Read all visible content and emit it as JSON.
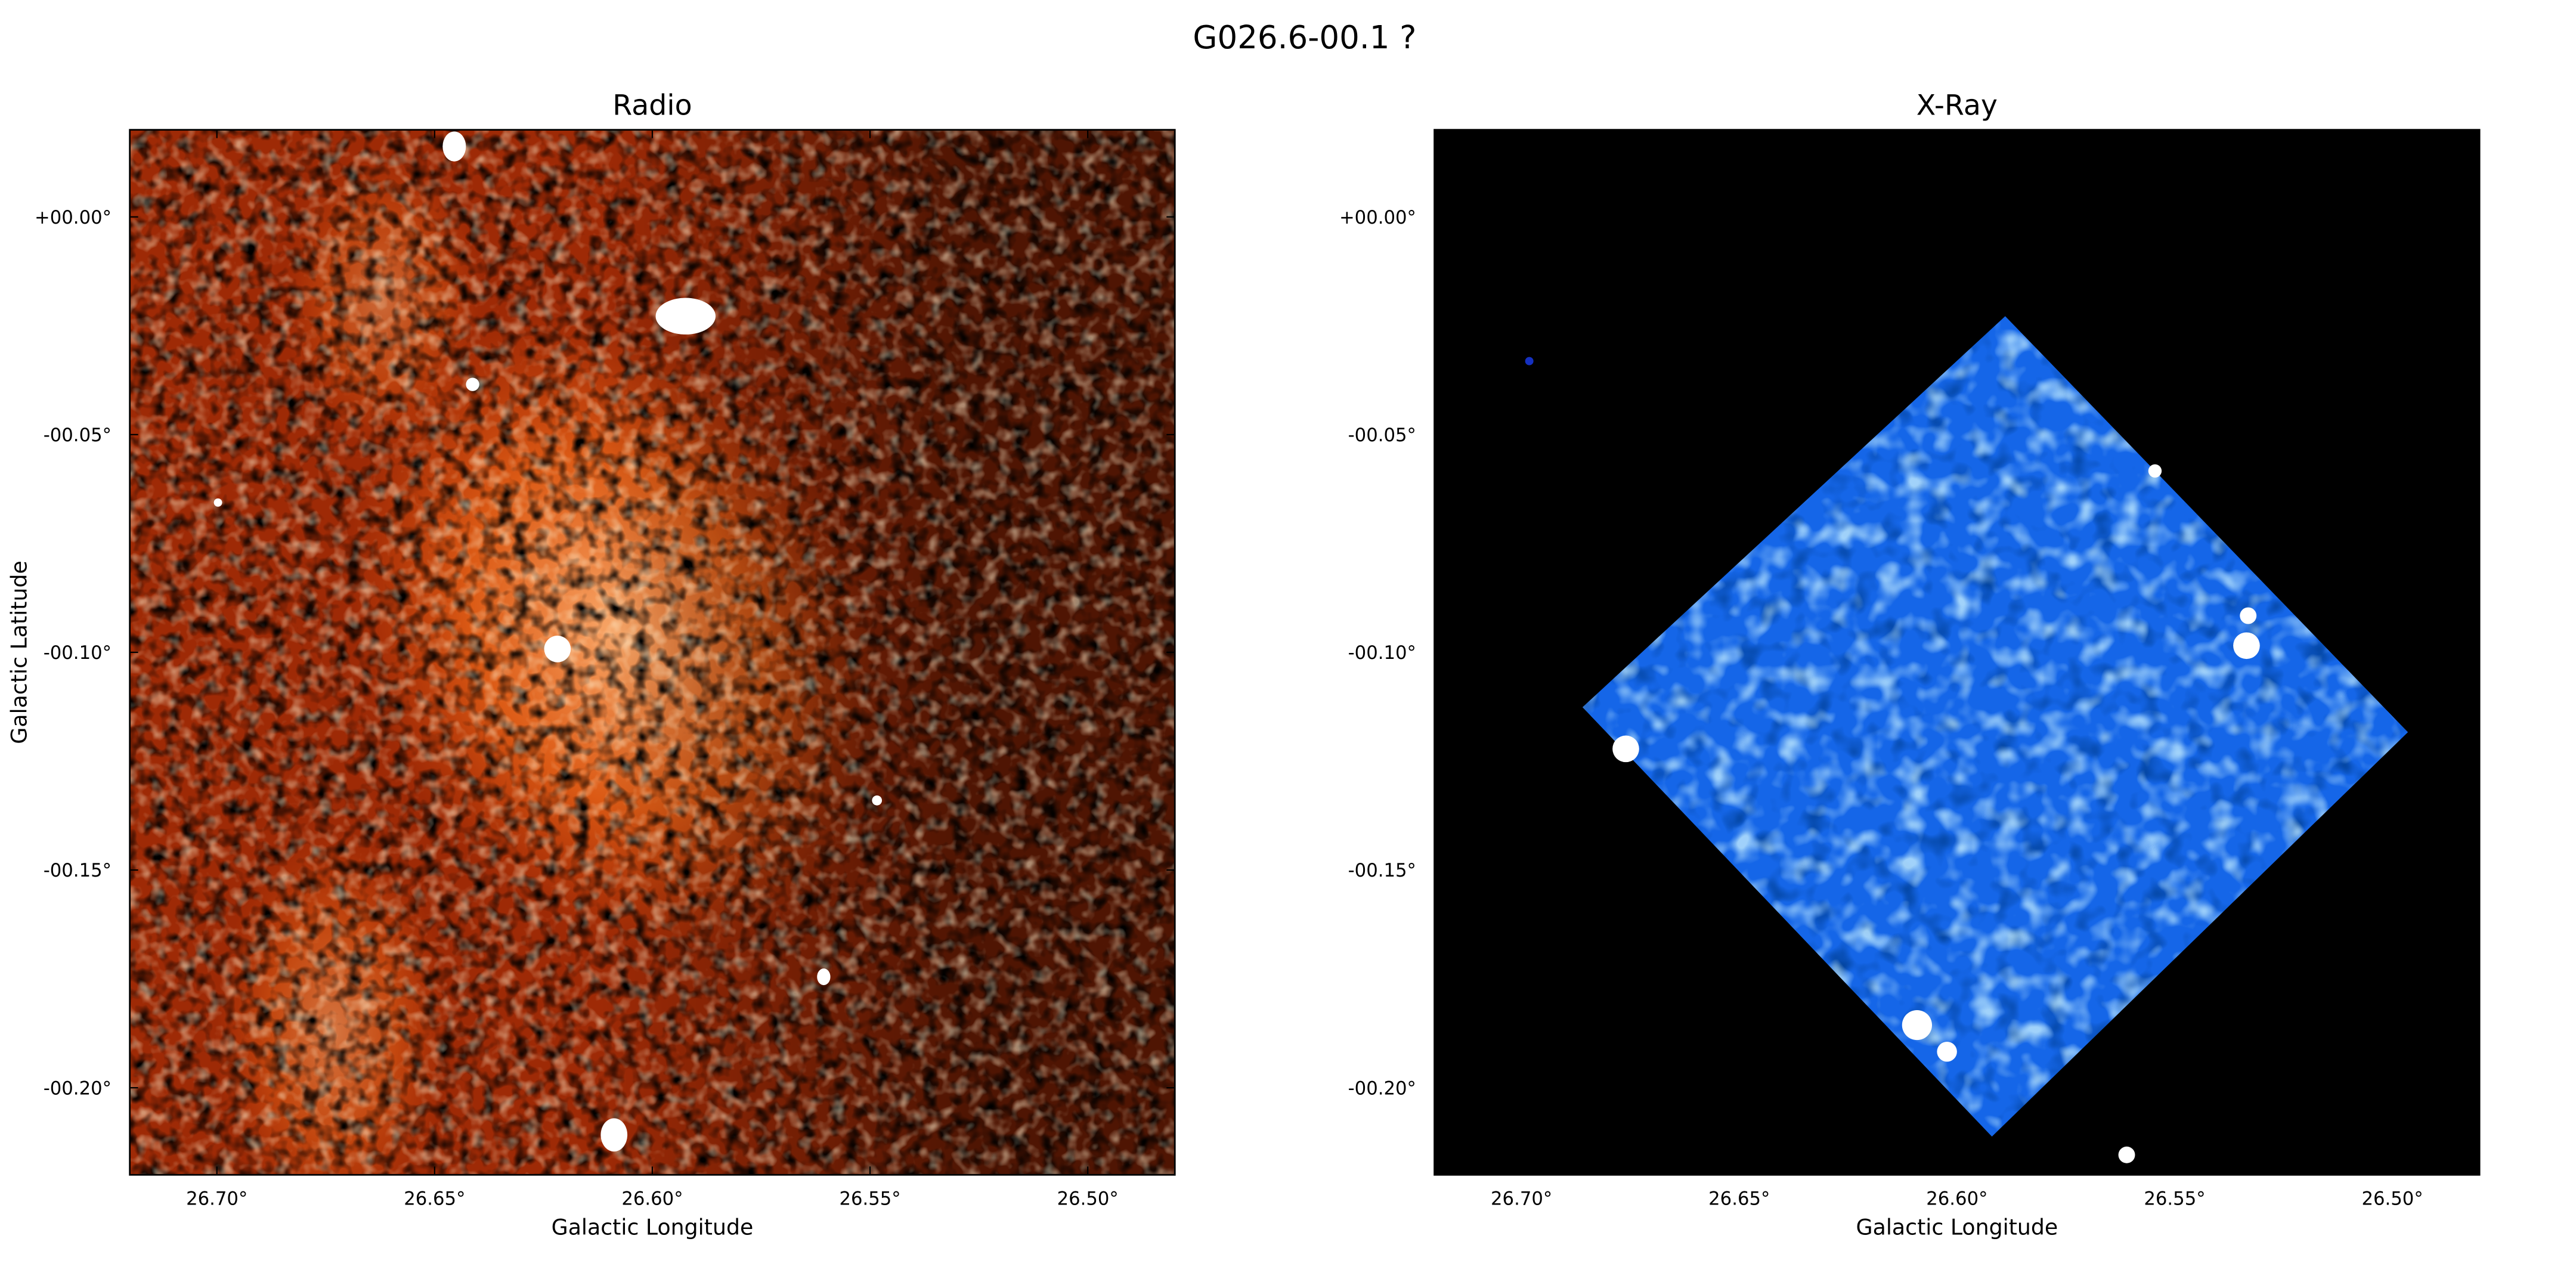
{
  "title": "G026.6-00.1 ?",
  "chart_data": [
    {
      "type": "image",
      "title": "Radio",
      "xlabel": "Galactic Longitude",
      "ylabel": "Galactic Latitude",
      "color": "#9e2a06",
      "xlim": [
        26.72,
        26.48
      ],
      "ylim": [
        -0.22,
        0.02
      ],
      "xticks": [
        {
          "value": 26.7,
          "label": "26.70°"
        },
        {
          "value": 26.65,
          "label": "26.65°"
        },
        {
          "value": 26.6,
          "label": "26.60°"
        },
        {
          "value": 26.55,
          "label": "26.55°"
        },
        {
          "value": 26.5,
          "label": "26.50°"
        }
      ],
      "yticks": [
        {
          "value": 0,
          "label": "+00.00°"
        },
        {
          "value": -0.05,
          "label": "-00.05°"
        },
        {
          "value": -0.1,
          "label": "-00.10°"
        },
        {
          "value": -0.15,
          "label": "-00.15°"
        },
        {
          "value": -0.2,
          "label": "-00.20°"
        }
      ]
    },
    {
      "type": "image",
      "title": "X-Ray",
      "xlabel": "Galactic Longitude",
      "color": "#1566e8",
      "xlim": [
        26.72,
        26.48
      ],
      "ylim": [
        -0.22,
        0.02
      ],
      "xticks": [
        {
          "value": 26.7,
          "label": "26.70°"
        },
        {
          "value": 26.65,
          "label": "26.65°"
        },
        {
          "value": 26.6,
          "label": "26.60°"
        },
        {
          "value": 26.55,
          "label": "26.55°"
        },
        {
          "value": 26.5,
          "label": "26.50°"
        }
      ],
      "yticks": [
        {
          "value": 0,
          "label": "+00.00°"
        },
        {
          "value": -0.05,
          "label": "-00.05°"
        },
        {
          "value": -0.1,
          "label": "-00.10°"
        },
        {
          "value": -0.15,
          "label": "-00.15°"
        },
        {
          "value": -0.2,
          "label": "-00.20°"
        }
      ]
    }
  ]
}
